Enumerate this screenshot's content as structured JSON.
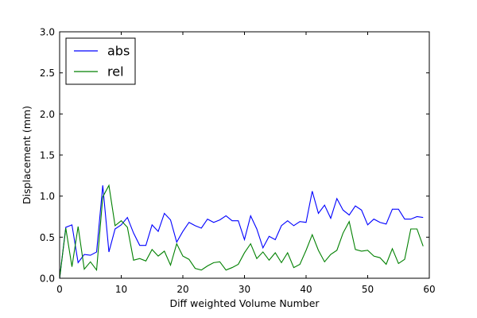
{
  "chart_data": {
    "type": "line",
    "xlabel": "Diff weighted Volume Number",
    "ylabel": "Displacement (mm)",
    "xlim": [
      0,
      60
    ],
    "ylim": [
      0,
      3.0
    ],
    "xticks": [
      0,
      10,
      20,
      30,
      40,
      50,
      60
    ],
    "yticks": [
      0.0,
      0.5,
      1.0,
      1.5,
      2.0,
      2.5,
      3.0
    ],
    "xtick_labels": [
      "0",
      "10",
      "20",
      "30",
      "40",
      "50",
      "60"
    ],
    "ytick_labels": [
      "0.0",
      "0.5",
      "1.0",
      "1.5",
      "2.0",
      "2.5",
      "3.0"
    ],
    "grid": false,
    "legend_position": "top-left",
    "x": [
      0,
      1,
      2,
      3,
      4,
      5,
      6,
      7,
      8,
      9,
      10,
      11,
      12,
      13,
      14,
      15,
      16,
      17,
      18,
      19,
      20,
      21,
      22,
      23,
      24,
      25,
      26,
      27,
      28,
      29,
      30,
      31,
      32,
      33,
      34,
      35,
      36,
      37,
      38,
      39,
      40,
      41,
      42,
      43,
      44,
      45,
      46,
      47,
      48,
      49,
      50,
      51,
      52,
      53,
      54,
      55,
      56,
      57,
      58,
      59
    ],
    "series": [
      {
        "name": "abs",
        "color": "#0000ff",
        "values": [
          0.0,
          0.62,
          0.65,
          0.19,
          0.29,
          0.28,
          0.32,
          1.13,
          0.32,
          0.6,
          0.65,
          0.74,
          0.55,
          0.4,
          0.4,
          0.65,
          0.57,
          0.79,
          0.71,
          0.44,
          0.57,
          0.68,
          0.64,
          0.61,
          0.72,
          0.68,
          0.71,
          0.76,
          0.7,
          0.7,
          0.47,
          0.76,
          0.6,
          0.37,
          0.51,
          0.47,
          0.64,
          0.7,
          0.64,
          0.69,
          0.68,
          1.06,
          0.79,
          0.89,
          0.73,
          0.97,
          0.83,
          0.77,
          0.88,
          0.83,
          0.65,
          0.72,
          0.68,
          0.66,
          0.84,
          0.84,
          0.72,
          0.72,
          0.75,
          0.74
        ]
      },
      {
        "name": "rel",
        "color": "#008000",
        "values": [
          0.0,
          0.61,
          0.14,
          0.63,
          0.11,
          0.2,
          0.1,
          0.99,
          1.13,
          0.64,
          0.7,
          0.62,
          0.22,
          0.24,
          0.21,
          0.35,
          0.27,
          0.33,
          0.16,
          0.42,
          0.27,
          0.23,
          0.12,
          0.1,
          0.15,
          0.19,
          0.2,
          0.1,
          0.13,
          0.17,
          0.31,
          0.42,
          0.24,
          0.32,
          0.22,
          0.31,
          0.19,
          0.31,
          0.13,
          0.17,
          0.34,
          0.53,
          0.34,
          0.2,
          0.29,
          0.34,
          0.55,
          0.69,
          0.35,
          0.33,
          0.34,
          0.27,
          0.25,
          0.17,
          0.36,
          0.18,
          0.23,
          0.6,
          0.6,
          0.39
        ]
      }
    ]
  }
}
